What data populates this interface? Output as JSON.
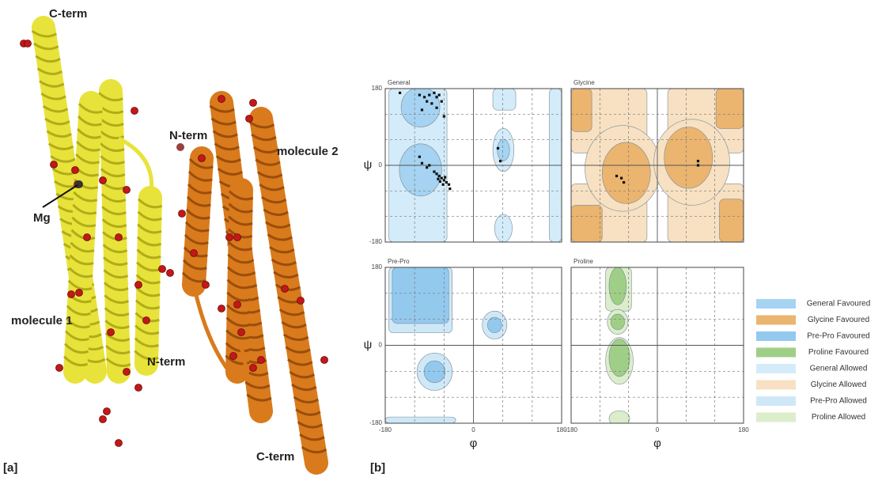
{
  "panel_a": {
    "label": "[a]",
    "annotations": [
      "C-term",
      "N-term",
      "molecule 2",
      "Mg",
      "molecule 1",
      "N-term",
      "C-term"
    ]
  },
  "panel_b": {
    "label": "[b]",
    "x_label": "φ",
    "y_label": "ψ",
    "ticks": [
      -180,
      0,
      180
    ],
    "lim": [
      -180,
      180
    ],
    "grid": [
      -120,
      -60,
      60,
      120
    ],
    "plots": [
      {
        "title": "General",
        "points": [
          [
            -150,
            170
          ],
          [
            -110,
            165
          ],
          [
            -100,
            160
          ],
          [
            -90,
            165
          ],
          [
            -80,
            170
          ],
          [
            -75,
            160
          ],
          [
            -70,
            165
          ],
          [
            -95,
            150
          ],
          [
            -85,
            145
          ],
          [
            -65,
            150
          ],
          [
            -105,
            130
          ],
          [
            -75,
            135
          ],
          [
            -60,
            115
          ],
          [
            -110,
            20
          ],
          [
            -105,
            5
          ],
          [
            -95,
            -5
          ],
          [
            -90,
            0
          ],
          [
            -80,
            -15
          ],
          [
            -75,
            -20
          ],
          [
            -70,
            -25
          ],
          [
            -65,
            -30
          ],
          [
            -60,
            -35
          ],
          [
            -55,
            -40
          ],
          [
            -50,
            -45
          ],
          [
            -68,
            -38
          ],
          [
            -58,
            -28
          ],
          [
            -72,
            -32
          ],
          [
            -62,
            -45
          ],
          [
            -48,
            -55
          ],
          [
            50,
            40
          ],
          [
            55,
            10
          ]
        ]
      },
      {
        "title": "Glycine",
        "points": [
          [
            -85,
            -25
          ],
          [
            -75,
            -30
          ],
          [
            -70,
            -40
          ],
          [
            85,
            10
          ],
          [
            85,
            0
          ]
        ]
      },
      {
        "title": "Pre-Pro",
        "points": []
      },
      {
        "title": "Proline",
        "points": []
      }
    ],
    "legend": [
      {
        "label": "General Favoured",
        "color": "#a5d3f1"
      },
      {
        "label": "Glycine Favoured",
        "color": "#ebb46f"
      },
      {
        "label": "Pre-Pro Favoured",
        "color": "#94c9ee"
      },
      {
        "label": "Proline Favoured",
        "color": "#9fcf86"
      },
      {
        "label": "General Allowed",
        "color": "#d4ecfa"
      },
      {
        "label": "Glycine Allowed",
        "color": "#f7e1c2"
      },
      {
        "label": "Pre-Pro Allowed",
        "color": "#cfe8f8"
      },
      {
        "label": "Proline Allowed",
        "color": "#dcedcb"
      }
    ]
  }
}
